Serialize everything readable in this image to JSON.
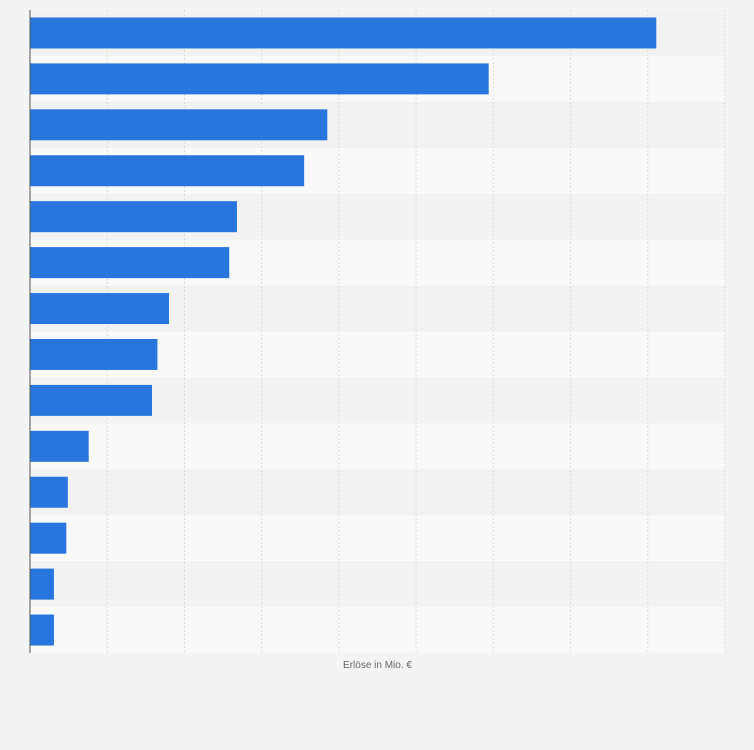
{
  "chart_data": {
    "type": "bar",
    "orientation": "horizontal",
    "title": "",
    "xlabel": "Erlöse in Mio. €",
    "ylabel": "",
    "xlim": [
      0,
      900
    ],
    "grid": true,
    "legend": "none",
    "colors": {
      "bar": "#2876dd",
      "background": "#f4f4f4",
      "band_light": "#f9f9f9",
      "band_dark": "#f2f2f2",
      "gridline": "#dedede",
      "axis": "#555555"
    },
    "categories": [
      "",
      "",
      "",
      "",
      "",
      "",
      "",
      "",
      "",
      "",
      "",
      "",
      "",
      ""
    ],
    "values": [
      811,
      594,
      385,
      355,
      268,
      258,
      180,
      165,
      158,
      76,
      49,
      47,
      31,
      31
    ]
  }
}
